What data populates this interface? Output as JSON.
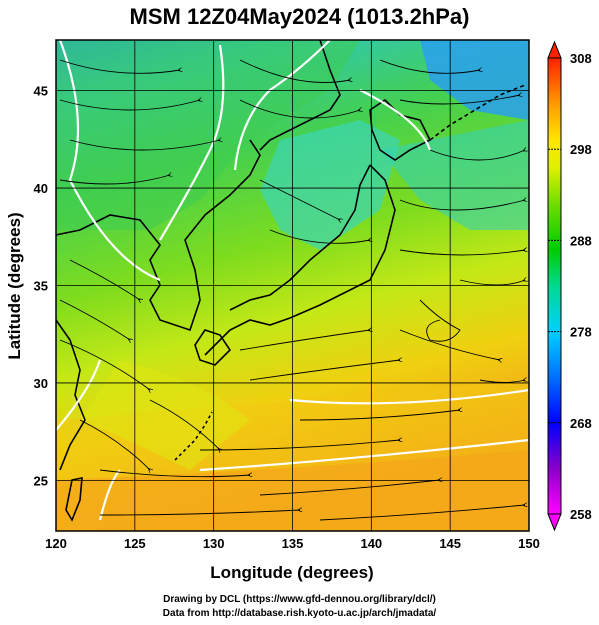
{
  "title": "MSM 12Z04May2024 (1013.2hPa)",
  "chart_data": {
    "type": "map",
    "xlabel": "Longitude (degrees)",
    "ylabel": "Latitude  (degrees)",
    "xlim": [
      120,
      150
    ],
    "ylim": [
      22.4,
      47.6
    ],
    "x_ticks": [
      "120",
      "125",
      "130",
      "135",
      "140",
      "145",
      "150"
    ],
    "y_ticks": [
      "25",
      "30",
      "35",
      "40",
      "45"
    ],
    "colorbar": {
      "ticks": [
        "258",
        "268",
        "278",
        "288",
        "298",
        "308"
      ],
      "range": [
        258,
        308
      ],
      "colors": [
        "#ff00ff",
        "#8000c0",
        "#0000ff",
        "#0066ff",
        "#00ccff",
        "#00e0a0",
        "#00cc00",
        "#66dd00",
        "#ccee00",
        "#ffee00",
        "#ffaa00",
        "#ff6600",
        "#ff0000"
      ]
    },
    "grid": true
  },
  "credits": {
    "line1": "Drawing by DCL (https://www.gfd-dennou.org/library/dcl/)",
    "line2": "Data from http://database.rish.kyoto-u.ac.jp/arch/jmadata/"
  }
}
